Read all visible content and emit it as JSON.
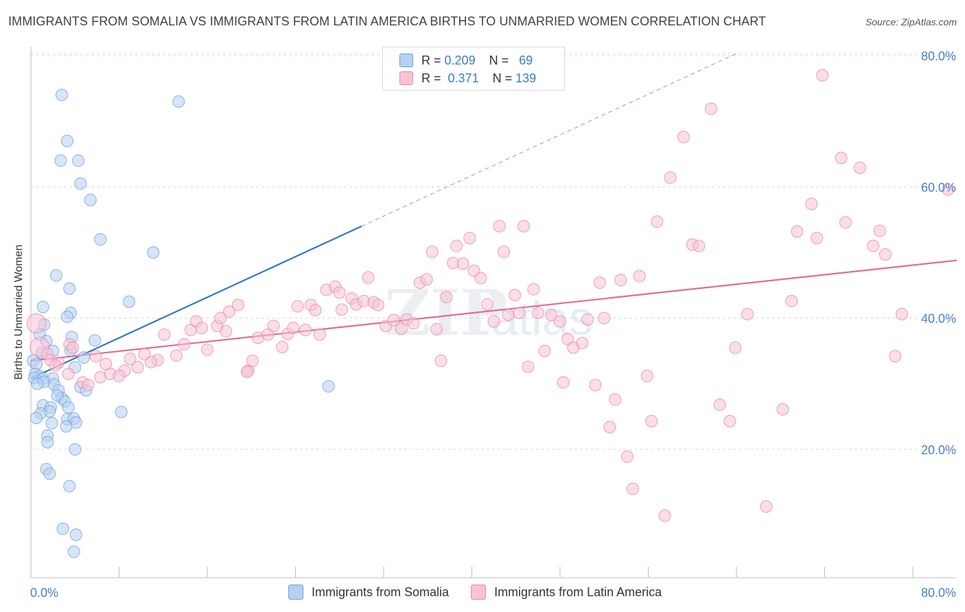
{
  "title": "IMMIGRANTS FROM SOMALIA VS IMMIGRANTS FROM LATIN AMERICA BIRTHS TO UNMARRIED WOMEN CORRELATION CHART",
  "source": "Source: ZipAtlas.com",
  "stats": [
    {
      "r_label": "R =",
      "r_value": "0.209",
      "n_label": "N =",
      "n_value": "69",
      "color": "#b6d0f2",
      "border": "#6f9fdc"
    },
    {
      "r_label": "R =",
      "r_value": "0.371",
      "n_label": "N =",
      "n_value": "139",
      "color": "#f7c3d4",
      "border": "#e887a8"
    }
  ],
  "legend": [
    {
      "label": "Immigrants from Somalia",
      "color": "#b6d0f2"
    },
    {
      "label": "Immigrants from Latin America",
      "color": "#f7c3d4"
    }
  ],
  "chart_data": {
    "type": "scatter",
    "ylabel": "Births to Unmarried Women",
    "xlim": [
      0,
      80
    ],
    "ylim": [
      0,
      82
    ],
    "x_tick_labels": [
      "0.0%",
      "80.0%"
    ],
    "y_ticks": [
      20,
      40,
      60,
      80
    ],
    "y_tick_labels": [
      "20.0%",
      "40.0%",
      "60.0%",
      "80.0%"
    ],
    "grid": true,
    "series": [
      {
        "name": "Immigrants from Somalia",
        "color": "#6f9fdc",
        "fill": "#b6d0f2",
        "points": [
          [
            2.8,
            74
          ],
          [
            13.4,
            73
          ],
          [
            3.3,
            67
          ],
          [
            2.7,
            64
          ],
          [
            4.3,
            64
          ],
          [
            4.5,
            60.5
          ],
          [
            5.4,
            58
          ],
          [
            6.3,
            52
          ],
          [
            11.1,
            50
          ],
          [
            2.3,
            46.5
          ],
          [
            3.5,
            44.5
          ],
          [
            8.9,
            42.5
          ],
          [
            1.1,
            41.7
          ],
          [
            3.6,
            40.8
          ],
          [
            3.3,
            40.2
          ],
          [
            1.2,
            39
          ],
          [
            0.8,
            37.5
          ],
          [
            3.7,
            37.1
          ],
          [
            1.4,
            36.5
          ],
          [
            5.8,
            36.6
          ],
          [
            2.0,
            35
          ],
          [
            3.6,
            35.1
          ],
          [
            1.0,
            34.7
          ],
          [
            4.8,
            34.0
          ],
          [
            0.2,
            33.5
          ],
          [
            0.5,
            33.0
          ],
          [
            4.0,
            32.5
          ],
          [
            0.4,
            31.5
          ],
          [
            0.8,
            31.1
          ],
          [
            0.3,
            30.9
          ],
          [
            1.1,
            30.8
          ],
          [
            2.0,
            30.8
          ],
          [
            1.2,
            30.3
          ],
          [
            0.6,
            30.0
          ],
          [
            2.1,
            29.9
          ],
          [
            4.5,
            29.5
          ],
          [
            5.0,
            29.0
          ],
          [
            2.5,
            29.0
          ],
          [
            2.8,
            27.8
          ],
          [
            2.4,
            28.2
          ],
          [
            3.1,
            27.3
          ],
          [
            1.1,
            26.7
          ],
          [
            1.8,
            26.4
          ],
          [
            3.4,
            26.4
          ],
          [
            1.7,
            25.8
          ],
          [
            0.9,
            25.5
          ],
          [
            8.2,
            25.7
          ],
          [
            0.5,
            24.8
          ],
          [
            3.3,
            24.6
          ],
          [
            3.9,
            24.7
          ],
          [
            4.1,
            24.1
          ],
          [
            1.9,
            24.0
          ],
          [
            3.2,
            23.5
          ],
          [
            1.5,
            22.1
          ],
          [
            1.5,
            21.1
          ],
          [
            4.0,
            20.0
          ],
          [
            1.4,
            17.0
          ],
          [
            1.7,
            16.3
          ],
          [
            3.5,
            14.4
          ],
          [
            2.9,
            7.9
          ],
          [
            4.1,
            7.0
          ],
          [
            3.9,
            4.4
          ],
          [
            27.0,
            29.6
          ]
        ],
        "trendline": {
          "x": [
            0,
            30
          ],
          "y": [
            30.8,
            54.0
          ]
        },
        "trendline_ext": {
          "x": [
            30,
            64
          ],
          "y": [
            54.0,
            80.3
          ]
        }
      },
      {
        "name": "Immigrants from Latin America",
        "color": "#e887a8",
        "fill": "#f7c3d4",
        "points": [
          [
            0.5,
            39.2
          ],
          [
            0.8,
            35.6
          ],
          [
            1.5,
            34.5
          ],
          [
            2.5,
            33.2
          ],
          [
            3.4,
            31.5
          ],
          [
            4.7,
            30.2
          ],
          [
            5.9,
            34.2
          ],
          [
            6.3,
            31.0
          ],
          [
            7.2,
            31.5
          ],
          [
            8.5,
            32.0
          ],
          [
            9.0,
            33.8
          ],
          [
            10.3,
            34.5
          ],
          [
            11.5,
            33.6
          ],
          [
            12.1,
            37.5
          ],
          [
            13.2,
            34.3
          ],
          [
            13.9,
            36.0
          ],
          [
            14.5,
            38.2
          ],
          [
            15.0,
            39.5
          ],
          [
            15.5,
            38.5
          ],
          [
            16.0,
            35.2
          ],
          [
            16.9,
            38.8
          ],
          [
            17.2,
            40.0
          ],
          [
            17.7,
            38.0
          ],
          [
            18.0,
            41.0
          ],
          [
            18.8,
            42.0
          ],
          [
            19.7,
            32.0
          ],
          [
            20.1,
            33.5
          ],
          [
            20.6,
            37.0
          ],
          [
            21.5,
            37.5
          ],
          [
            22.0,
            38.8
          ],
          [
            22.8,
            35.6
          ],
          [
            23.3,
            37.6
          ],
          [
            23.8,
            38.5
          ],
          [
            24.2,
            41.8
          ],
          [
            24.9,
            38.2
          ],
          [
            25.4,
            42.0
          ],
          [
            25.8,
            41.2
          ],
          [
            26.2,
            37.5
          ],
          [
            26.8,
            44.3
          ],
          [
            27.6,
            44.8
          ],
          [
            28.0,
            43.9
          ],
          [
            28.2,
            41.3
          ],
          [
            29.1,
            43.0
          ],
          [
            29.5,
            42.1
          ],
          [
            30.2,
            42.6
          ],
          [
            30.6,
            46.2
          ],
          [
            31.1,
            42.4
          ],
          [
            31.5,
            42.0
          ],
          [
            32.2,
            38.8
          ],
          [
            32.9,
            39.7
          ],
          [
            33.6,
            38.4
          ],
          [
            34.1,
            39.8
          ],
          [
            34.7,
            39.2
          ],
          [
            35.3,
            45.4
          ],
          [
            35.9,
            45.9
          ],
          [
            36.4,
            50.1
          ],
          [
            36.8,
            38.3
          ],
          [
            37.2,
            33.5
          ],
          [
            37.7,
            43.2
          ],
          [
            38.3,
            48.4
          ],
          [
            38.6,
            51.0
          ],
          [
            39.2,
            48.3
          ],
          [
            39.8,
            52.2
          ],
          [
            40.2,
            47.2
          ],
          [
            40.8,
            46.1
          ],
          [
            41.4,
            42.1
          ],
          [
            42.0,
            39.5
          ],
          [
            42.5,
            54.0
          ],
          [
            42.9,
            50.1
          ],
          [
            43.3,
            40.5
          ],
          [
            43.9,
            43.5
          ],
          [
            44.3,
            40.8
          ],
          [
            44.7,
            54.0
          ],
          [
            45.1,
            32.6
          ],
          [
            45.6,
            44.4
          ],
          [
            46.0,
            40.8
          ],
          [
            46.6,
            35.0
          ],
          [
            47.2,
            40.5
          ],
          [
            48.0,
            39.5
          ],
          [
            48.3,
            30.2
          ],
          [
            48.7,
            36.8
          ],
          [
            49.2,
            35.5
          ],
          [
            50.0,
            36.2
          ],
          [
            50.5,
            39.8
          ],
          [
            51.2,
            29.8
          ],
          [
            51.6,
            45.4
          ],
          [
            52.0,
            40.0
          ],
          [
            52.5,
            23.4
          ],
          [
            53.0,
            27.6
          ],
          [
            53.5,
            45.8
          ],
          [
            54.1,
            18.9
          ],
          [
            54.6,
            14.0
          ],
          [
            55.2,
            46.4
          ],
          [
            55.9,
            31.2
          ],
          [
            56.3,
            24.3
          ],
          [
            56.8,
            54.7
          ],
          [
            57.5,
            9.9
          ],
          [
            58.0,
            61.4
          ],
          [
            59.2,
            67.6
          ],
          [
            60.0,
            51.2
          ],
          [
            60.6,
            51.0
          ],
          [
            61.7,
            71.9
          ],
          [
            62.5,
            26.8
          ],
          [
            63.4,
            24.3
          ],
          [
            63.9,
            35.5
          ],
          [
            65.0,
            40.6
          ],
          [
            66.7,
            11.3
          ],
          [
            68.2,
            26.1
          ],
          [
            69.0,
            42.6
          ],
          [
            69.5,
            53.2
          ],
          [
            70.8,
            57.4
          ],
          [
            71.3,
            52.2
          ],
          [
            71.8,
            77.0
          ],
          [
            73.5,
            64.4
          ],
          [
            73.9,
            54.6
          ],
          [
            75.2,
            62.9
          ],
          [
            76.4,
            51.0
          ],
          [
            77.0,
            53.3
          ],
          [
            77.5,
            49.7
          ],
          [
            78.4,
            34.2
          ],
          [
            79.0,
            40.6
          ],
          [
            83.2,
            59.6
          ],
          [
            19.6,
            31.8
          ],
          [
            3.5,
            36.0
          ],
          [
            1.8,
            33.6
          ],
          [
            2.2,
            32.8
          ],
          [
            3.8,
            35.5
          ],
          [
            5.2,
            29.8
          ],
          [
            6.8,
            33.0
          ],
          [
            8.0,
            31.2
          ],
          [
            9.7,
            32.5
          ],
          [
            10.9,
            33.3
          ]
        ],
        "trendline": {
          "x": [
            0,
            84
          ],
          "y": [
            33.5,
            48.8
          ]
        }
      }
    ]
  }
}
